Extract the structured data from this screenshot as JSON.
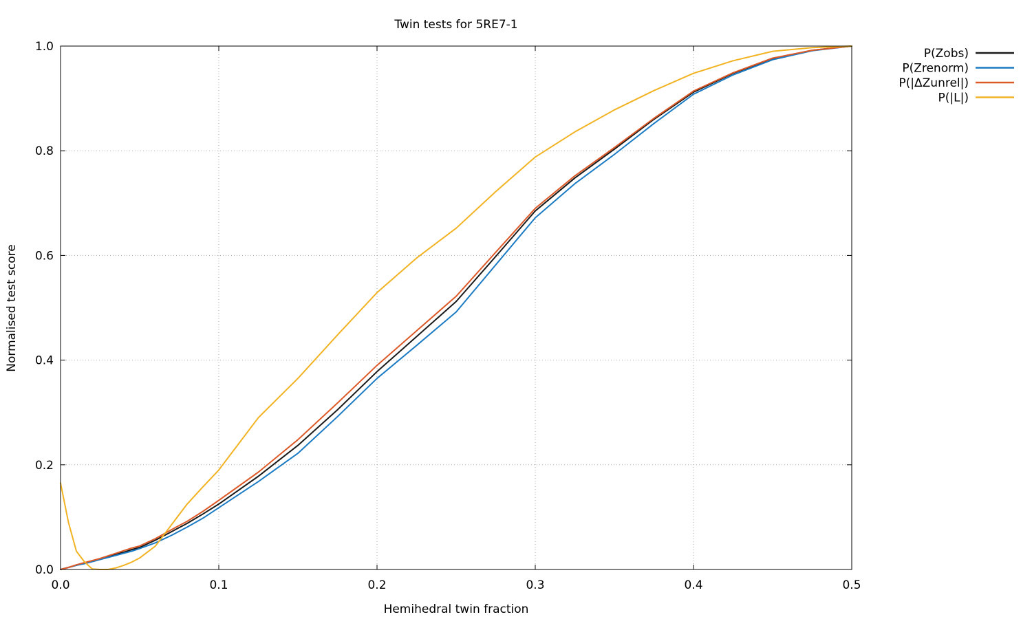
{
  "chart_data": {
    "type": "line",
    "title": "Twin tests for 5RE7-1",
    "xlabel": "Hemihedral twin fraction",
    "ylabel": "Normalised test score",
    "xlim": [
      0.0,
      0.5
    ],
    "ylim": [
      0.0,
      1.0
    ],
    "xticks": [
      "0.0",
      "0.1",
      "0.2",
      "0.3",
      "0.4",
      "0.5"
    ],
    "yticks": [
      "0.0",
      "0.2",
      "0.4",
      "0.6",
      "0.8",
      "1.0"
    ],
    "grid": "dotted",
    "grid_color": "#a8a8a8",
    "axis_color": "#000000",
    "legend_position": "outside-right-top",
    "x": [
      0,
      0.005,
      0.01,
      0.015,
      0.02,
      0.025,
      0.03,
      0.035,
      0.04,
      0.045,
      0.05,
      0.06,
      0.07,
      0.08,
      0.09,
      0.1,
      0.125,
      0.15,
      0.175,
      0.2,
      0.225,
      0.25,
      0.275,
      0.3,
      0.325,
      0.35,
      0.375,
      0.4,
      0.425,
      0.45,
      0.475,
      0.5
    ],
    "series": [
      {
        "name": "P(Zobs)",
        "color": "#1a1a1a",
        "values": [
          0.0,
          0.004,
          0.008,
          0.012,
          0.016,
          0.02,
          0.024,
          0.029,
          0.033,
          0.038,
          0.042,
          0.056,
          0.072,
          0.088,
          0.106,
          0.125,
          0.178,
          0.237,
          0.305,
          0.378,
          0.445,
          0.512,
          0.598,
          0.685,
          0.748,
          0.803,
          0.86,
          0.912,
          0.948,
          0.976,
          0.992,
          1.0
        ]
      },
      {
        "name": "P(Zrenorm)",
        "color": "#1a7bc4",
        "values": [
          0.0,
          0.004,
          0.008,
          0.011,
          0.015,
          0.019,
          0.023,
          0.027,
          0.031,
          0.035,
          0.04,
          0.051,
          0.065,
          0.081,
          0.098,
          0.118,
          0.168,
          0.222,
          0.292,
          0.365,
          0.428,
          0.492,
          0.582,
          0.672,
          0.737,
          0.793,
          0.852,
          0.908,
          0.945,
          0.974,
          0.991,
          1.0
        ]
      },
      {
        "name": "P(|ΔZunrel|)",
        "color": "#dd5a28",
        "values": [
          0.0,
          0.004,
          0.009,
          0.013,
          0.017,
          0.021,
          0.026,
          0.031,
          0.036,
          0.041,
          0.045,
          0.059,
          0.076,
          0.092,
          0.111,
          0.132,
          0.186,
          0.248,
          0.318,
          0.39,
          0.456,
          0.522,
          0.606,
          0.69,
          0.752,
          0.806,
          0.862,
          0.914,
          0.949,
          0.977,
          0.992,
          1.0
        ]
      },
      {
        "name": "P(|L|)",
        "color": "#f2b323",
        "values": [
          0.165,
          0.09,
          0.035,
          0.015,
          0.001,
          0.0,
          0.0,
          0.003,
          0.008,
          0.014,
          0.022,
          0.045,
          0.085,
          0.125,
          0.158,
          0.19,
          0.29,
          0.365,
          0.448,
          0.529,
          0.595,
          0.652,
          0.722,
          0.788,
          0.836,
          0.878,
          0.915,
          0.948,
          0.972,
          0.99,
          0.997,
          1.0
        ]
      }
    ]
  },
  "layout_note": ""
}
